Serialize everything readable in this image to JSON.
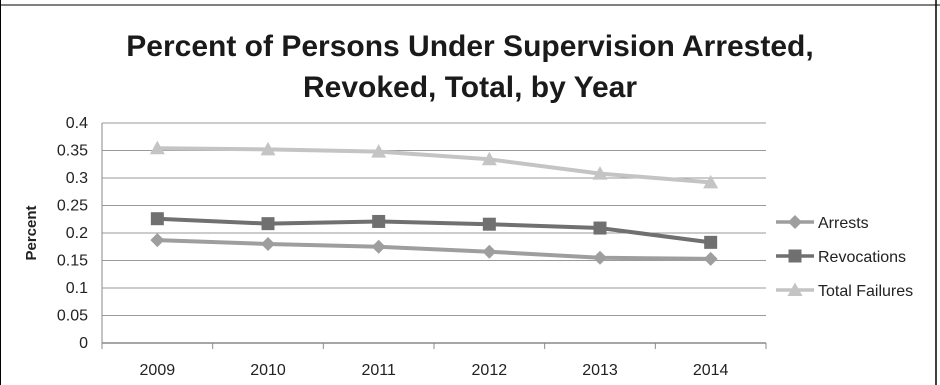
{
  "chart_data": {
    "type": "line",
    "title_line1": "Percent of Persons Under Supervision Arrested,",
    "title_line2": "Revoked, Total, by Year",
    "xlabel": "",
    "ylabel": "Percent",
    "categories": [
      "2009",
      "2010",
      "2011",
      "2012",
      "2013",
      "2014"
    ],
    "ylim": [
      0,
      0.4
    ],
    "yticks": [
      "0",
      "0.05",
      "0.1",
      "0.15",
      "0.2",
      "0.25",
      "0.3",
      "0.35",
      "0.4"
    ],
    "grid": true,
    "legend_position": "right",
    "series": [
      {
        "name": "Arrests",
        "values": [
          0.187,
          0.18,
          0.175,
          0.166,
          0.155,
          0.153
        ],
        "color": "#9e9e9e",
        "marker": "diamond"
      },
      {
        "name": "Revocations",
        "values": [
          0.226,
          0.217,
          0.221,
          0.216,
          0.209,
          0.183
        ],
        "color": "#707070",
        "marker": "square"
      },
      {
        "name": "Total Failures",
        "values": [
          0.354,
          0.352,
          0.348,
          0.334,
          0.308,
          0.292
        ],
        "color": "#c4c4c4",
        "marker": "triangle"
      }
    ]
  }
}
